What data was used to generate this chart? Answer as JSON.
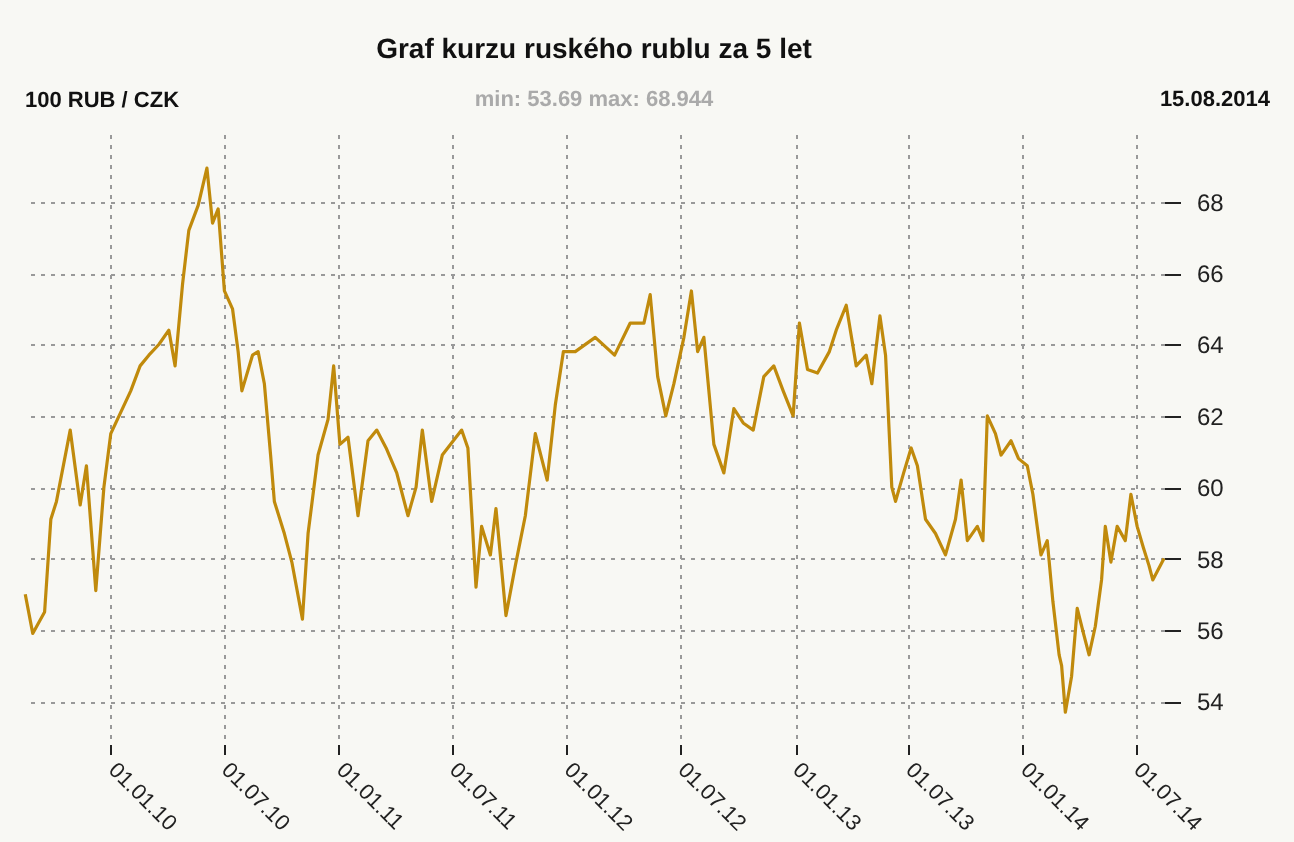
{
  "chart_data": {
    "type": "line",
    "title": "Graf kurzu ruského rublu za 5 let",
    "ylabel": "100 RUB / CZK",
    "annotations": [
      "min: 53.69  max: 68.944",
      "15.08.2014"
    ],
    "xlim": [
      "2009-08-15",
      "2014-08-15"
    ],
    "ylim": [
      52.8,
      69.9
    ],
    "xticks": [
      {
        "value": "2010-01-01",
        "label": "01.01.10"
      },
      {
        "value": "2010-07-01",
        "label": "01.07.10"
      },
      {
        "value": "2011-01-01",
        "label": "01.01.11"
      },
      {
        "value": "2011-07-01",
        "label": "01.07.11"
      },
      {
        "value": "2012-01-01",
        "label": "01.01.12"
      },
      {
        "value": "2012-07-01",
        "label": "01.07.12"
      },
      {
        "value": "2013-01-01",
        "label": "01.01.13"
      },
      {
        "value": "2013-07-01",
        "label": "01.07.13"
      },
      {
        "value": "2014-01-01",
        "label": "01.01.14"
      },
      {
        "value": "2014-07-01",
        "label": "01.07.14"
      }
    ],
    "yticks": [
      54,
      56,
      58,
      60,
      62,
      64,
      66,
      68
    ],
    "grid": true,
    "series": [
      {
        "color": "#c08a0c",
        "x": [
          "2009-08-17",
          "2009-08-29",
          "2009-09-17",
          "2009-09-27",
          "2009-10-06",
          "2009-10-28",
          "2009-11-13",
          "2009-11-23",
          "2009-12-08",
          "2009-12-21",
          "2010-01-01",
          "2010-02-02",
          "2010-02-17",
          "2010-03-03",
          "2010-03-19",
          "2010-04-04",
          "2010-04-14",
          "2010-04-26",
          "2010-05-06",
          "2010-05-21",
          "2010-06-04",
          "2010-06-13",
          "2010-06-22",
          "2010-07-02",
          "2010-07-15",
          "2010-07-24",
          "2010-07-30",
          "2010-08-16",
          "2010-08-25",
          "2010-09-04",
          "2010-09-14",
          "2010-09-20",
          "2010-10-06",
          "2010-10-18",
          "2010-11-04",
          "2010-11-13",
          "2010-11-29",
          "2010-12-15",
          "2010-12-24",
          "2011-01-03",
          "2011-01-16",
          "2011-02-01",
          "2011-02-17",
          "2011-03-03",
          "2011-03-18",
          "2011-04-04",
          "2011-04-22",
          "2011-05-05",
          "2011-05-15",
          "2011-05-30",
          "2011-06-16",
          "2011-07-17",
          "2011-07-27",
          "2011-08-09",
          "2011-08-18",
          "2011-09-01",
          "2011-09-10",
          "2011-09-26",
          "2011-10-11",
          "2011-10-27",
          "2011-11-12",
          "2011-12-01",
          "2011-12-14",
          "2011-12-27",
          "2012-01-15",
          "2012-02-16",
          "2012-03-18",
          "2012-04-12",
          "2012-05-04",
          "2012-05-14",
          "2012-05-26",
          "2012-06-08",
          "2012-06-21",
          "2012-07-07",
          "2012-07-19",
          "2012-07-29",
          "2012-08-08",
          "2012-08-24",
          "2012-09-09",
          "2012-09-25",
          "2012-10-10",
          "2012-10-26",
          "2012-11-12",
          "2012-11-28",
          "2012-12-13",
          "2012-12-29",
          "2013-01-08",
          "2013-01-21",
          "2013-02-06",
          "2013-02-25",
          "2013-03-08",
          "2013-03-24",
          "2013-04-09",
          "2013-04-25",
          "2013-05-04",
          "2013-05-17",
          "2013-05-26",
          "2013-06-05",
          "2013-06-11",
          "2013-06-24",
          "2013-07-06",
          "2013-07-16",
          "2013-07-29",
          "2013-08-14",
          "2013-08-30",
          "2013-09-15",
          "2013-09-24",
          "2013-10-04",
          "2013-10-20",
          "2013-10-29",
          "2013-11-05",
          "2013-11-18",
          "2013-11-27",
          "2013-12-13",
          "2013-12-25",
          "2014-01-08",
          "2014-01-17",
          "2014-01-30",
          "2014-02-09",
          "2014-02-18",
          "2014-02-28",
          "2014-03-04",
          "2014-03-10",
          "2014-03-20",
          "2014-03-29",
          "2014-04-08",
          "2014-04-17",
          "2014-04-27",
          "2014-05-07",
          "2014-05-13",
          "2014-05-22",
          "2014-06-01",
          "2014-06-14",
          "2014-06-23",
          "2014-07-03",
          "2014-07-13",
          "2014-07-22",
          "2014-07-28",
          "2014-08-15"
        ],
        "values": [
          57.0,
          55.9,
          56.5,
          59.1,
          59.6,
          61.6,
          59.5,
          60.6,
          57.1,
          60.0,
          61.5,
          62.7,
          63.4,
          63.7,
          64.0,
          64.4,
          63.4,
          65.7,
          67.2,
          67.9,
          68.944,
          67.4,
          67.8,
          65.5,
          65.0,
          63.8,
          62.7,
          63.7,
          63.8,
          62.9,
          60.9,
          59.6,
          58.7,
          57.9,
          56.3,
          58.7,
          60.9,
          61.9,
          63.4,
          61.2,
          61.4,
          59.2,
          61.3,
          61.6,
          61.1,
          60.4,
          59.2,
          60.0,
          61.6,
          59.6,
          60.9,
          61.6,
          61.1,
          57.2,
          58.9,
          58.1,
          59.4,
          56.4,
          57.8,
          59.2,
          61.5,
          60.2,
          62.3,
          63.8,
          63.8,
          64.2,
          63.7,
          64.6,
          64.6,
          65.4,
          63.1,
          62.0,
          62.9,
          64.2,
          65.5,
          63.8,
          64.2,
          61.2,
          60.4,
          62.2,
          61.8,
          61.6,
          63.1,
          63.4,
          62.7,
          62.0,
          64.6,
          63.3,
          63.2,
          63.8,
          64.4,
          65.1,
          63.4,
          63.7,
          62.9,
          64.8,
          63.7,
          60.0,
          59.6,
          60.4,
          61.1,
          60.6,
          59.1,
          58.7,
          58.1,
          59.1,
          60.2,
          58.5,
          58.9,
          58.5,
          62.0,
          61.5,
          60.9,
          61.3,
          60.8,
          60.6,
          59.8,
          58.1,
          58.5,
          56.8,
          55.3,
          55.0,
          53.69,
          54.7,
          56.6,
          55.9,
          55.3,
          56.1,
          57.4,
          58.9,
          57.9,
          58.9,
          58.5,
          59.8,
          58.9,
          58.3,
          57.8,
          57.4,
          58.0
        ]
      }
    ]
  }
}
